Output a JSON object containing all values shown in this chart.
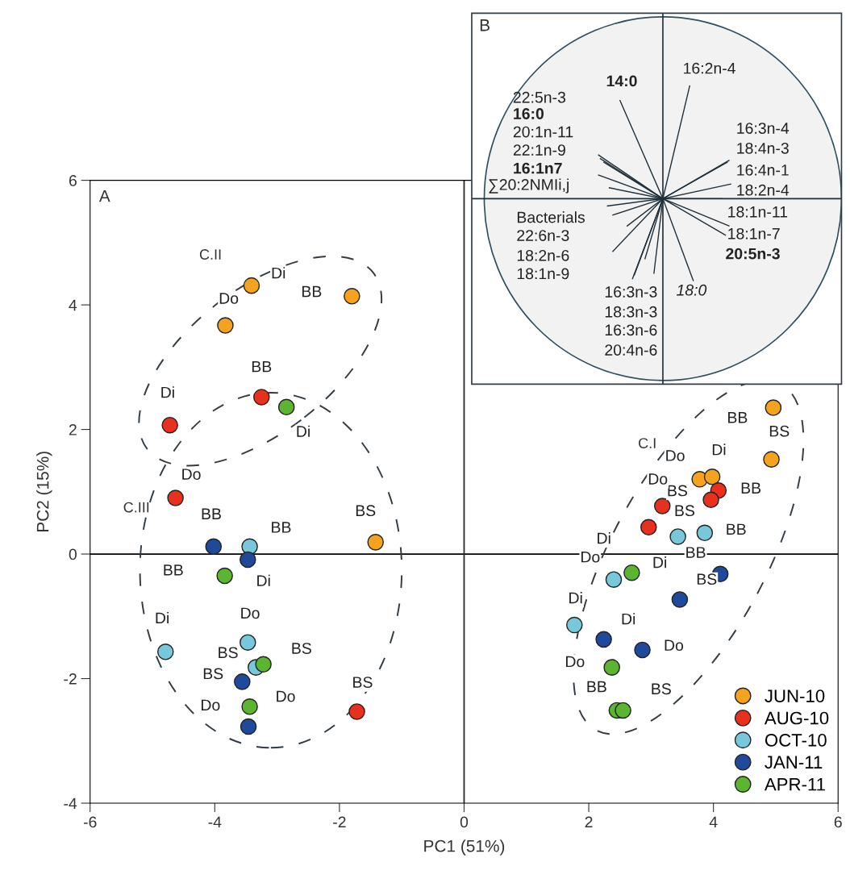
{
  "chart_data": [
    {
      "type": "scatter",
      "title": "A",
      "xlabel": "PC1 (51%)",
      "ylabel": "PC2 (15%)",
      "xlim": [
        -6,
        6
      ],
      "ylim": [
        -4,
        6
      ],
      "xticks": [
        -6,
        -4,
        -2,
        0,
        2,
        4,
        6
      ],
      "yticks": [
        -4,
        -2,
        0,
        2,
        4,
        6
      ],
      "grid": false,
      "legend": "bottom right",
      "marker": "circle",
      "ref_lines": [
        {
          "axis": "y",
          "value": 0,
          "color": "#000000"
        },
        {
          "axis": "x",
          "value": 0,
          "color": "#2a2a2a"
        }
      ],
      "series": [
        {
          "name": "JUN-10",
          "color": "#f5a21e",
          "x": [
            -3.41,
            -3.83,
            -1.8,
            -1.42,
            4.96,
            4.93,
            3.78,
            3.98
          ],
          "values": [
            4.31,
            3.67,
            4.14,
            0.19,
            2.35,
            1.52,
            1.2,
            1.24
          ]
        },
        {
          "name": "AUG-10",
          "color": "#e8301e",
          "x": [
            -3.25,
            -4.72,
            -4.63,
            -1.72,
            4.08,
            3.96,
            3.18,
            2.96
          ],
          "values": [
            2.52,
            2.07,
            0.9,
            -2.53,
            1.02,
            0.87,
            0.77,
            0.43
          ]
        },
        {
          "name": "OCT-10",
          "color": "#78c8dc",
          "x": [
            -3.44,
            -4.79,
            -3.47,
            -3.34,
            3.43,
            3.86,
            2.4,
            1.77
          ],
          "values": [
            0.12,
            -1.57,
            -1.42,
            -1.82,
            0.28,
            0.34,
            -0.41,
            -1.14
          ]
        },
        {
          "name": "JAN-11",
          "color": "#1f4a9c",
          "x": [
            -4.02,
            -3.47,
            -3.56,
            -3.46,
            4.11,
            3.46,
            2.24,
            2.86
          ],
          "values": [
            0.12,
            -0.09,
            -2.05,
            -2.77,
            -0.32,
            -0.73,
            -1.37,
            -1.54
          ]
        },
        {
          "name": "APR-11",
          "color": "#5cb531",
          "x": [
            -2.85,
            -3.84,
            -3.22,
            -3.44,
            2.69,
            2.37,
            2.45,
            2.55
          ],
          "values": [
            2.36,
            -0.35,
            -1.77,
            -2.45,
            -0.3,
            -1.82,
            -2.51,
            -2.51
          ]
        }
      ],
      "annotations": [
        "C.I",
        "C.II",
        "C.III",
        {
          "text": "Di",
          "x": -3.41,
          "y": 4.31
        },
        {
          "text": "Do",
          "x": -3.83,
          "y": 3.67
        },
        {
          "text": "BB",
          "x": -1.8,
          "y": 4.14
        },
        {
          "text": "BS",
          "x": -1.42,
          "y": 0.19
        },
        {
          "text": "BB",
          "x": 4.96,
          "y": 2.35
        },
        {
          "text": "BS",
          "x": 4.93,
          "y": 1.52
        },
        {
          "text": "Do",
          "x": 3.78,
          "y": 1.2
        },
        {
          "text": "Di",
          "x": 3.98,
          "y": 1.24
        },
        {
          "text": "BB",
          "x": -3.25,
          "y": 2.52
        },
        {
          "text": "Di",
          "x": -4.72,
          "y": 2.07
        },
        {
          "text": "Do",
          "x": -4.63,
          "y": 0.9
        },
        {
          "text": "BS",
          "x": -1.72,
          "y": -2.53
        },
        {
          "text": "BB",
          "x": 4.08,
          "y": 1.02
        },
        {
          "text": "BS",
          "x": 3.96,
          "y": 0.87
        },
        {
          "text": "Do",
          "x": 3.18,
          "y": 0.77
        },
        {
          "text": "Di",
          "x": 2.96,
          "y": 0.43
        },
        {
          "text": "BB",
          "x": -3.44,
          "y": 0.12
        },
        {
          "text": "Di",
          "x": -4.79,
          "y": -1.57
        },
        {
          "text": "Do",
          "x": -3.47,
          "y": -1.42
        },
        {
          "text": "BS",
          "x": -3.34,
          "y": -1.82
        },
        {
          "text": "BS",
          "x": 3.43,
          "y": 0.28
        },
        {
          "text": "BB",
          "x": 3.86,
          "y": 0.34
        },
        {
          "text": "Do",
          "x": 2.4,
          "y": -0.41
        },
        {
          "text": "Di",
          "x": 1.77,
          "y": -1.14
        },
        {
          "text": "BB",
          "x": -4.02,
          "y": 0.12
        },
        {
          "text": "Di",
          "x": -3.47,
          "y": -0.09
        },
        {
          "text": "BS",
          "x": -3.56,
          "y": -2.05
        },
        {
          "text": "Do",
          "x": -3.46,
          "y": -2.77
        },
        {
          "text": "BB",
          "x": 4.11,
          "y": -0.32
        },
        {
          "text": "BS",
          "x": 3.46,
          "y": -0.73
        },
        {
          "text": "Di",
          "x": 2.24,
          "y": -1.37
        },
        {
          "text": "Do",
          "x": 2.86,
          "y": -1.54
        },
        {
          "text": "Di",
          "x": -2.85,
          "y": 2.36
        },
        {
          "text": "BB",
          "x": -3.84,
          "y": -0.35
        },
        {
          "text": "BS",
          "x": -3.22,
          "y": -1.77
        },
        {
          "text": "Do",
          "x": -3.44,
          "y": -2.45
        },
        {
          "text": "Di",
          "x": 2.69,
          "y": -0.3
        },
        {
          "text": "Do",
          "x": 2.37,
          "y": -1.82
        },
        {
          "text": "BB",
          "x": 2.45,
          "y": -2.51
        },
        {
          "text": "BS",
          "x": 2.55,
          "y": -2.51
        }
      ]
    },
    {
      "type": "other",
      "title": "B",
      "annotations": [
        "22:5n-3",
        "16:0",
        "20:1n-11",
        "22:1n-9",
        "16:1n7",
        "∑20:2NMIi,j",
        "Bacterials",
        "22:6n-3",
        "18:2n-6",
        "18:1n-9",
        "14:0",
        "16:2n-4",
        "16:3n-4",
        "18:4n-3",
        "16:4n-1",
        "18:2n-4",
        "18:1n-11",
        "18:1n-7",
        "20:5n-3",
        "16:3n-3",
        "18:3n-3",
        "16:3n-6",
        "20:4n-6",
        "18:0"
      ]
    }
  ]
}
